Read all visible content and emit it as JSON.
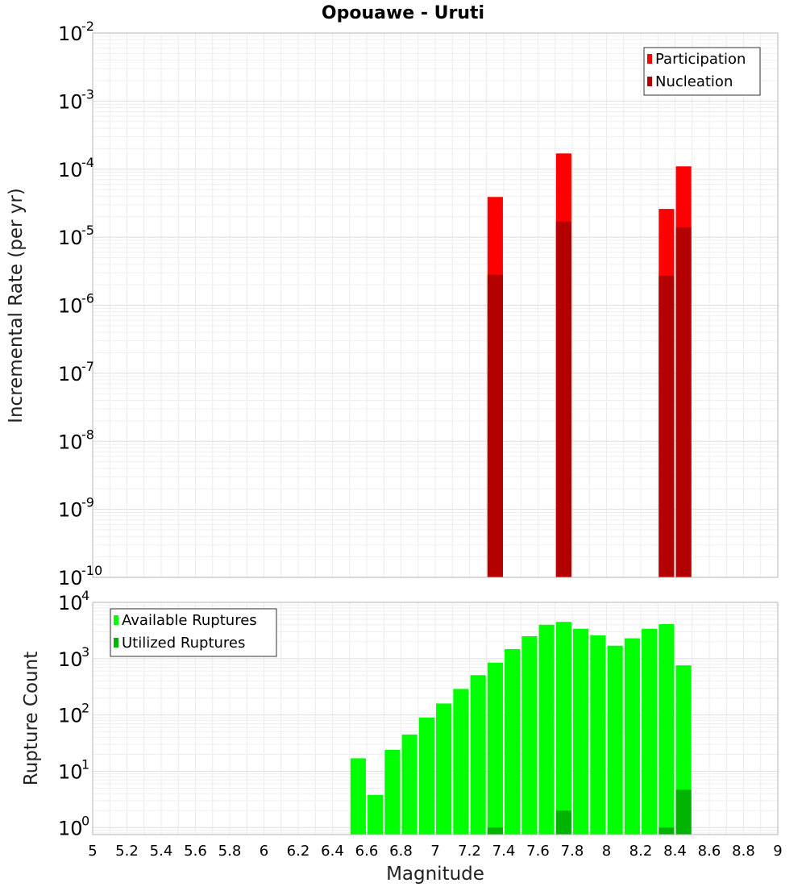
{
  "title": "Opouawe - Uruti",
  "x_axis": {
    "label": "Magnitude",
    "range": [
      5,
      9
    ],
    "ticks": [
      "5",
      "5.2",
      "5.4",
      "5.6",
      "5.8",
      "6",
      "6.2",
      "6.4",
      "6.6",
      "6.8",
      "7",
      "7.2",
      "7.4",
      "7.6",
      "7.8",
      "8",
      "8.2",
      "8.4",
      "8.6",
      "8.8",
      "9"
    ]
  },
  "chart_data": [
    {
      "type": "bar",
      "name": "rate-panel",
      "ylabel": "Incremental Rate (per yr)",
      "yscale": "log",
      "ylim": [
        1e-10,
        0.01
      ],
      "y_tick_exponents": [
        "-10",
        "-9",
        "-8",
        "-7",
        "-6",
        "-5",
        "-4",
        "-3",
        "-2"
      ],
      "grid": true,
      "legend_position": "top-right",
      "bar_width": 0.09,
      "series": [
        {
          "name": "Participation",
          "color": "#ff0000",
          "points": [
            {
              "x": 7.35,
              "y": 3.9e-05
            },
            {
              "x": 7.75,
              "y": 0.00017
            },
            {
              "x": 8.35,
              "y": 2.6e-05
            },
            {
              "x": 8.45,
              "y": 0.00011
            }
          ]
        },
        {
          "name": "Nucleation",
          "color": "#b30000",
          "points": [
            {
              "x": 7.35,
              "y": 2.8e-06
            },
            {
              "x": 7.75,
              "y": 1.7e-05
            },
            {
              "x": 8.35,
              "y": 2.7e-06
            },
            {
              "x": 8.45,
              "y": 1.4e-05
            }
          ]
        }
      ]
    },
    {
      "type": "bar",
      "name": "count-panel",
      "ylabel": "Rupture Count",
      "yscale": "log",
      "ylim": [
        0.75,
        10000
      ],
      "y_tick_exponents": [
        "0",
        "1",
        "2",
        "3",
        "4"
      ],
      "grid": true,
      "legend_position": "top-left",
      "bar_width": 0.09,
      "series": [
        {
          "name": "Available Ruptures",
          "color": "#00ff00",
          "points": [
            {
              "x": 6.55,
              "y": 17
            },
            {
              "x": 6.65,
              "y": 3.8
            },
            {
              "x": 6.75,
              "y": 24
            },
            {
              "x": 6.85,
              "y": 45
            },
            {
              "x": 6.95,
              "y": 90
            },
            {
              "x": 7.05,
              "y": 160
            },
            {
              "x": 7.15,
              "y": 290
            },
            {
              "x": 7.25,
              "y": 510
            },
            {
              "x": 7.35,
              "y": 850
            },
            {
              "x": 7.45,
              "y": 1480
            },
            {
              "x": 7.55,
              "y": 2500
            },
            {
              "x": 7.65,
              "y": 4000
            },
            {
              "x": 7.75,
              "y": 4500
            },
            {
              "x": 7.85,
              "y": 3400
            },
            {
              "x": 7.95,
              "y": 2600
            },
            {
              "x": 8.05,
              "y": 1700
            },
            {
              "x": 8.15,
              "y": 2300
            },
            {
              "x": 8.25,
              "y": 3400
            },
            {
              "x": 8.35,
              "y": 4100
            },
            {
              "x": 8.45,
              "y": 760
            }
          ]
        },
        {
          "name": "Utilized Ruptures",
          "color": "#00b300",
          "points": [
            {
              "x": 7.35,
              "y": 1
            },
            {
              "x": 7.75,
              "y": 2
            },
            {
              "x": 8.35,
              "y": 1
            },
            {
              "x": 8.45,
              "y": 4.7
            }
          ]
        }
      ]
    }
  ]
}
